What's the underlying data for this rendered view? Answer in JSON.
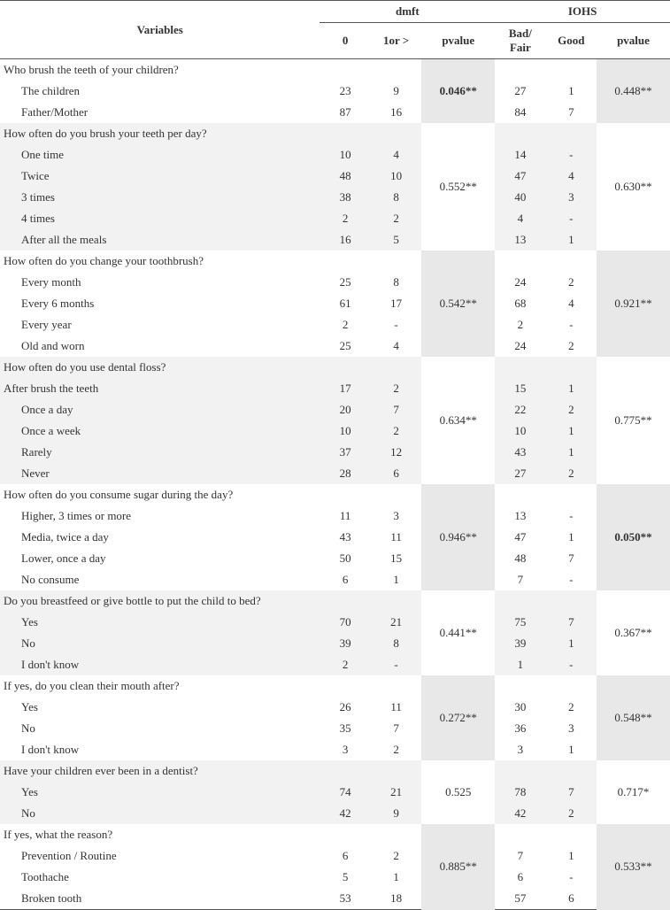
{
  "header": {
    "varLabel": "Variables",
    "group1": "dmft",
    "group2": "IOHS",
    "g1c1": "0",
    "g1c2": "1or >",
    "g1p": "pvalue",
    "g2c1": "Bad/ Fair",
    "g2c2": "Good",
    "g2p": "pvalue"
  },
  "sections": [
    {
      "question": "Who brush the teeth of your children?",
      "p1": "0.046**",
      "p1bold": true,
      "p2": "0.448**",
      "p2bold": false,
      "rows": [
        {
          "label": "The children",
          "a": "23",
          "b": "9",
          "c": "27",
          "d": "1"
        },
        {
          "label": "Father/Mother",
          "a": "87",
          "b": "16",
          "c": "84",
          "d": "7"
        }
      ]
    },
    {
      "question": "How often do you brush your teeth per day?",
      "p1": "0.552**",
      "p1bold": false,
      "p2": "0.630**",
      "p2bold": false,
      "rows": [
        {
          "label": "One time",
          "a": "10",
          "b": "4",
          "c": "14",
          "d": "-"
        },
        {
          "label": "Twice",
          "a": "48",
          "b": "10",
          "c": "47",
          "d": "4"
        },
        {
          "label": "3 times",
          "a": "38",
          "b": "8",
          "c": "40",
          "d": "3"
        },
        {
          "label": "4 times",
          "a": "2",
          "b": "2",
          "c": "4",
          "d": "-"
        },
        {
          "label": "After all the meals",
          "a": "16",
          "b": "5",
          "c": "13",
          "d": "1"
        }
      ]
    },
    {
      "question": "How often do you change your toothbrush?",
      "p1": "0.542**",
      "p1bold": false,
      "p2": "0.921**",
      "p2bold": false,
      "rows": [
        {
          "label": "Every month",
          "a": "25",
          "b": "8",
          "c": "24",
          "d": "2"
        },
        {
          "label": "Every 6 months",
          "a": "61",
          "b": "17",
          "c": "68",
          "d": "4"
        },
        {
          "label": "Every year",
          "a": "2",
          "b": "-",
          "c": "2",
          "d": "-"
        },
        {
          "label": "Old and worn",
          "a": "25",
          "b": "4",
          "c": "24",
          "d": "2"
        }
      ]
    },
    {
      "question": "How often do you use dental floss?",
      "p1": "0.634**",
      "p1bold": false,
      "p2": "0.775**",
      "p2bold": false,
      "rows": [
        {
          "label": "After brush the teeth",
          "indent": false,
          "a": "17",
          "b": "2",
          "c": "15",
          "d": "1"
        },
        {
          "label": "Once a day",
          "a": "20",
          "b": "7",
          "c": "22",
          "d": "2"
        },
        {
          "label": "Once a week",
          "a": "10",
          "b": "2",
          "c": "10",
          "d": "1"
        },
        {
          "label": "Rarely",
          "a": "37",
          "b": "12",
          "c": "43",
          "d": "1"
        },
        {
          "label": "Never",
          "a": "28",
          "b": "6",
          "c": "27",
          "d": "2"
        }
      ]
    },
    {
      "question": "How often do you consume sugar during the day?",
      "p1": "0.946**",
      "p1bold": false,
      "p2": "0.050**",
      "p2bold": true,
      "rows": [
        {
          "label": "Higher, 3 times or more",
          "a": "11",
          "b": "3",
          "c": "13",
          "d": "-"
        },
        {
          "label": "Media, twice a day",
          "a": "43",
          "b": "11",
          "c": "47",
          "d": "1"
        },
        {
          "label": "Lower, once a day",
          "a": "50",
          "b": "15",
          "c": "48",
          "d": "7"
        },
        {
          "label": "No consume",
          "a": "6",
          "b": "1",
          "c": "7",
          "d": "-"
        }
      ]
    },
    {
      "question": "Do you breastfeed or give bottle to put the child to bed?",
      "p1": "0.441**",
      "p1bold": false,
      "p2": "0.367**",
      "p2bold": false,
      "rows": [
        {
          "label": "Yes",
          "a": "70",
          "b": "21",
          "c": "75",
          "d": "7"
        },
        {
          "label": "No",
          "a": "39",
          "b": "8",
          "c": "39",
          "d": "1"
        },
        {
          "label": "I don't know",
          "a": "2",
          "b": "-",
          "c": "1",
          "d": "-"
        }
      ]
    },
    {
      "question": "If yes, do you clean their mouth after?",
      "p1": "0.272**",
      "p1bold": false,
      "p2": "0.548**",
      "p2bold": false,
      "rows": [
        {
          "label": "Yes",
          "a": "26",
          "b": "11",
          "c": "30",
          "d": "2"
        },
        {
          "label": "No",
          "a": "35",
          "b": "7",
          "c": "36",
          "d": "3"
        },
        {
          "label": "I don't know",
          "a": "3",
          "b": "2",
          "c": "3",
          "d": "1"
        }
      ]
    },
    {
      "question": "Have your children ever been in a dentist?",
      "p1": "0.525",
      "p1bold": false,
      "p2": "0.717*",
      "p2bold": false,
      "rows": [
        {
          "label": "Yes",
          "a": "74",
          "b": "21",
          "c": "78",
          "d": "7"
        },
        {
          "label": "No",
          "a": "42",
          "b": "9",
          "c": "42",
          "d": "2"
        }
      ]
    },
    {
      "question": "If yes, what the reason?",
      "p1": "0.885**",
      "p1bold": false,
      "p2": "0.533**",
      "p2bold": false,
      "rows": [
        {
          "label": "Prevention / Routine",
          "a": "6",
          "b": "2",
          "c": "7",
          "d": "1"
        },
        {
          "label": "Toothache",
          "a": "5",
          "b": "1",
          "c": "6",
          "d": "-"
        },
        {
          "label": "Broken tooth",
          "a": "53",
          "b": "18",
          "c": "57",
          "d": "6"
        }
      ]
    }
  ]
}
